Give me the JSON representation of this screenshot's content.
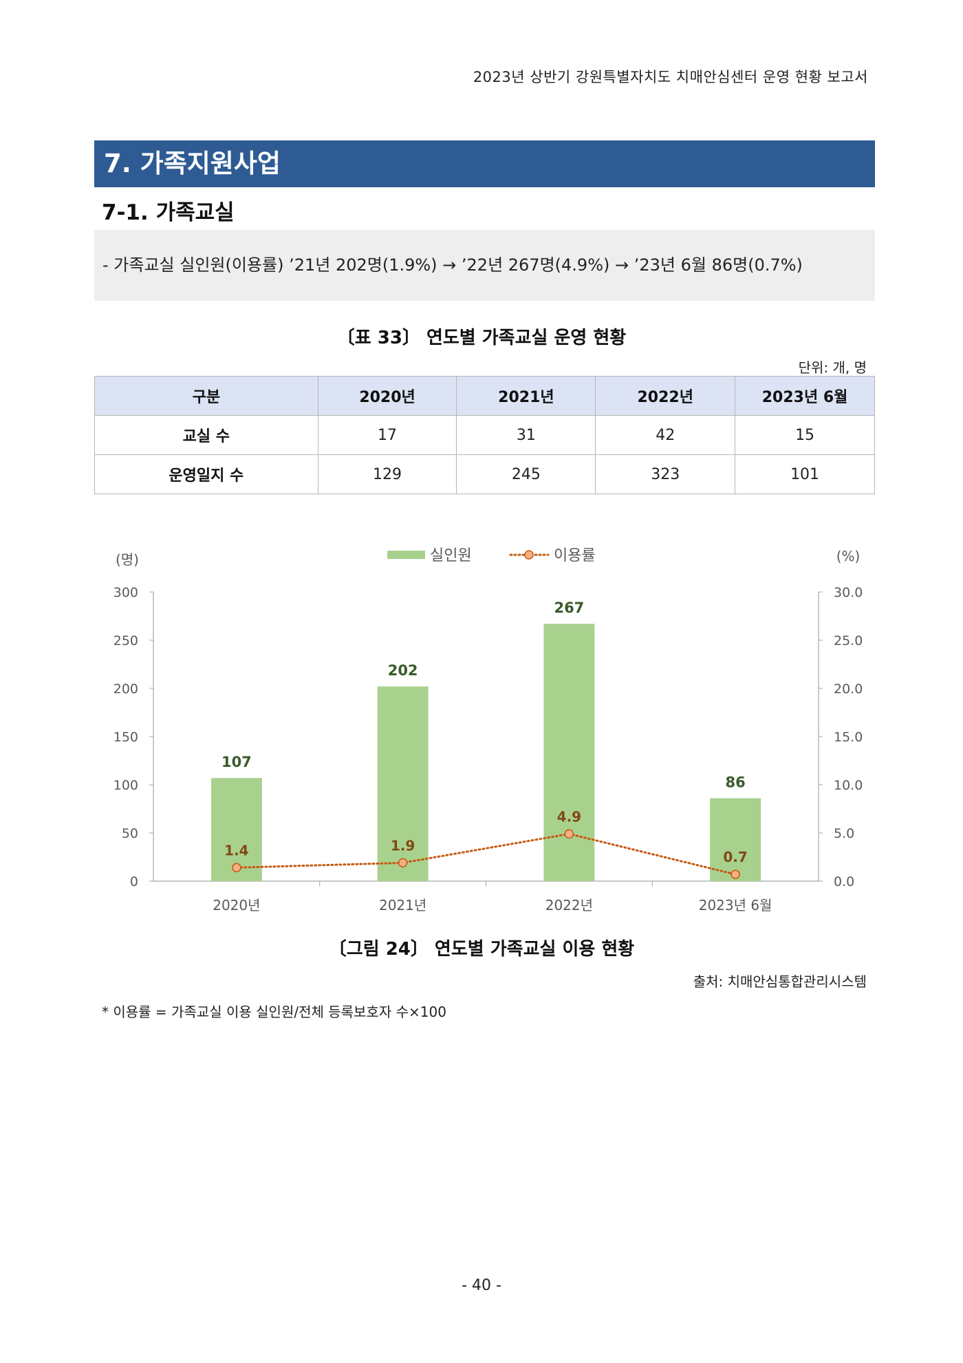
{
  "header": {
    "running_title": "2023년 상반기 강원특별자치도 치매안심센터 운영 현황 보고서"
  },
  "section": {
    "title": "7. 가족지원사업"
  },
  "subsection": {
    "title": "7-1. 가족교실"
  },
  "summary": {
    "text": "- 가족교실 실인원(이용률) ’21년 202명(1.9%) → ’22년 267명(4.9%) → ’23년 6월 86명(0.7%)"
  },
  "table": {
    "caption": "〔표 33〕 연도별 가족교실 운영 현황",
    "unit": "단위: 개, 명",
    "headers": [
      "구분",
      "2020년",
      "2021년",
      "2022년",
      "2023년 6월"
    ],
    "rows": [
      {
        "label": "교실 수",
        "values": [
          "17",
          "31",
          "42",
          "15"
        ]
      },
      {
        "label": "운영일지 수",
        "values": [
          "129",
          "245",
          "323",
          "101"
        ]
      }
    ]
  },
  "chart_data": {
    "type": "bar",
    "categories": [
      "2020년",
      "2021년",
      "2022년",
      "2023년 6월"
    ],
    "series": [
      {
        "name": "실인원",
        "type": "bar",
        "axis": "left",
        "color": "#a9d18e",
        "values": [
          107,
          202,
          267,
          86
        ],
        "labels": [
          "107",
          "202",
          "267",
          "86"
        ]
      },
      {
        "name": "이용률",
        "type": "line",
        "axis": "right",
        "color": "#c55a11",
        "values": [
          1.4,
          1.9,
          4.9,
          0.7
        ],
        "labels": [
          "1.4",
          "1.9",
          "4.9",
          "0.7"
        ]
      }
    ],
    "left_axis": {
      "label": "(명)",
      "min": 0,
      "max": 300,
      "ticks": [
        "0",
        "50",
        "100",
        "150",
        "200",
        "250",
        "300"
      ]
    },
    "right_axis": {
      "label": "(%)",
      "min": 0,
      "max": 30,
      "ticks": [
        "0.0",
        "5.0",
        "10.0",
        "15.0",
        "20.0",
        "25.0",
        "30.0"
      ]
    },
    "legend": "top-center",
    "grid": false
  },
  "figure": {
    "caption": "〔그림 24〕 연도별 가족교실 이용 현황",
    "source": "출처: 치매안심통합관리시스템"
  },
  "footnote": "* 이용률 = 가족교실 이용 실인원/전체 등록보호자 수×100",
  "page_number": "- 40 -"
}
